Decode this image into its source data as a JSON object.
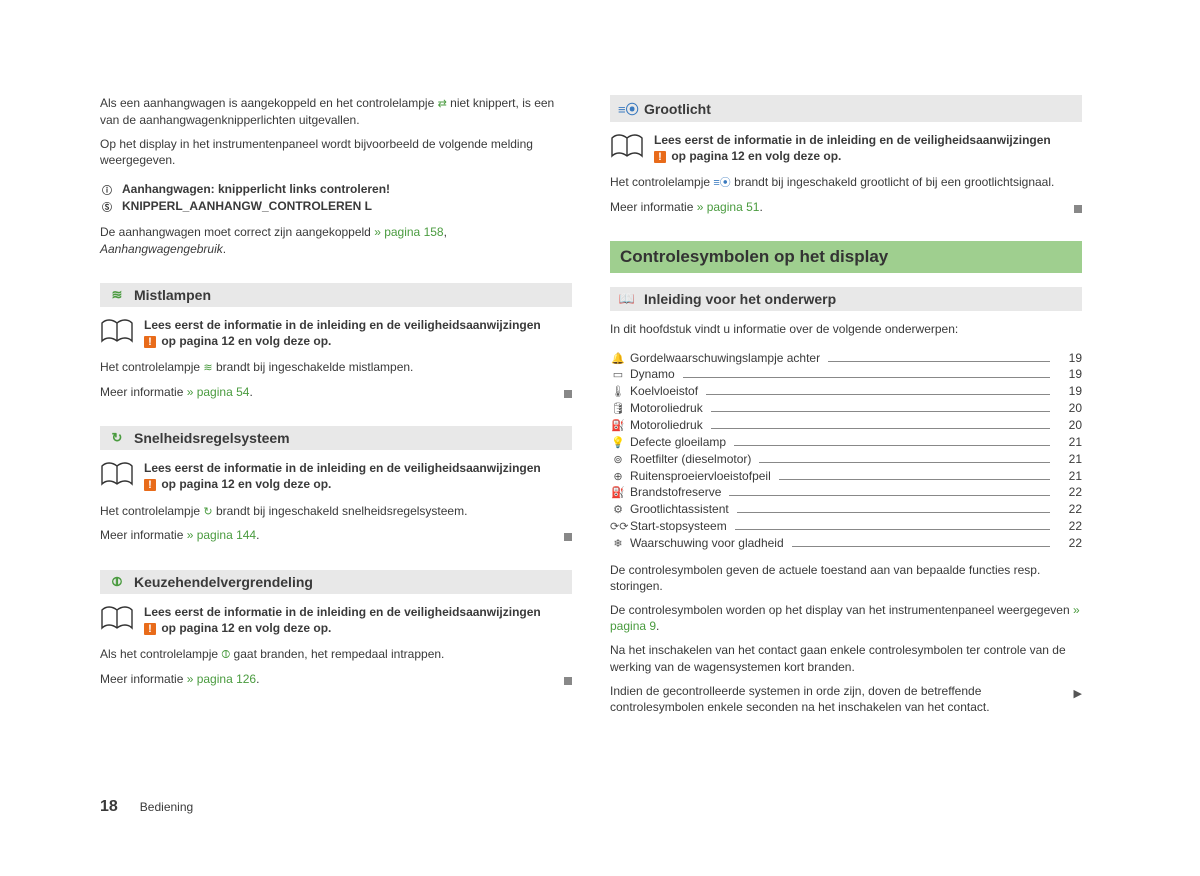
{
  "colors": {
    "green": "#4a9b3f",
    "blue": "#3a7abf",
    "orange": "#e86b1a",
    "heading_green_bg": "#9fcf8f",
    "bar_grey": "#e8e8e8"
  },
  "notice_text": {
    "line1": "Lees eerst de informatie in de inleiding en de veiligheidsaanwijzingen",
    "line2_prefix": " op pagina 12 en volg deze op.",
    "warn_glyph": "!"
  },
  "left": {
    "intro_p1_a": "Als een aanhangwagen is aangekoppeld en het controlelampje ",
    "intro_p1_b": " niet knippert, is een van de aanhangwagenknipperlichten uitgevallen.",
    "intro_p2": "Op het display in het instrumentenpaneel wordt bijvoorbeeld de volgende melding weergegeven.",
    "bullets": [
      {
        "glyph": "ⓘ",
        "text": "Aanhangwagen: knipperlicht links controleren!"
      },
      {
        "glyph": "Ⓢ",
        "text": "KNIPPERL_AANHANGW_CONTROLEREN L"
      }
    ],
    "intro_p3_a": "De aanhangwagen moet correct zijn aangekoppeld ",
    "intro_p3_ref": "» pagina 158",
    "intro_p3_b": ", ",
    "intro_p3_italic": "Aanhangwagengebruik",
    "intro_p3_c": ".",
    "sections": [
      {
        "icon": "≋",
        "title": "Mistlampen",
        "body_a": "Het controlelampje ",
        "body_b": " brandt bij ingeschakelde mistlampen.",
        "more_a": "Meer informatie ",
        "more_ref": "» pagina 54",
        "more_b": "."
      },
      {
        "icon": "↻",
        "title": "Snelheidsregelsysteem",
        "body_a": "Het controlelampje ",
        "body_b": " brandt bij ingeschakeld snelheidsregelsysteem.",
        "more_a": "Meer informatie ",
        "more_ref": "» pagina 144",
        "more_b": "."
      },
      {
        "icon": "⦷",
        "title": "Keuzehendelvergrendeling",
        "body_a": "Als het controlelampje ",
        "body_b": " gaat branden, het rempedaal intrappen.",
        "more_a": "Meer informatie ",
        "more_ref": "» pagina 126",
        "more_b": "."
      }
    ]
  },
  "right": {
    "grootlicht": {
      "icon": "≡⦿",
      "title": "Grootlicht",
      "body_a": "Het controlelampje ",
      "body_b": " brandt bij ingeschakeld grootlicht of bij een grootlichtsignaal.",
      "more_a": "Meer informatie ",
      "more_ref": "» pagina 51",
      "more_b": "."
    },
    "heading": "Controlesymbolen op het display",
    "intro_bar": {
      "icon": "📖",
      "title": "Inleiding voor het onderwerp"
    },
    "intro_line": "In dit hoofdstuk vindt u informatie over de volgende onderwerpen:",
    "toc": [
      {
        "icon": "🔔",
        "label": "Gordelwaarschuwingslampje achter",
        "page": "19"
      },
      {
        "icon": "▭",
        "label": "Dynamo",
        "page": "19"
      },
      {
        "icon": "🌡",
        "label": "Koelvloeistof",
        "page": "19"
      },
      {
        "icon": "🛢",
        "label": "Motoroliedruk",
        "page": "20"
      },
      {
        "icon": "⛽",
        "label": "Motoroliedruk",
        "page": "20"
      },
      {
        "icon": "💡",
        "label": "Defecte gloeilamp",
        "page": "21"
      },
      {
        "icon": "⊚",
        "label": "Roetfilter (dieselmotor)",
        "page": "21"
      },
      {
        "icon": "⊕",
        "label": "Ruitensproeiervloeistofpeil",
        "page": "21"
      },
      {
        "icon": "⛽",
        "label": "Brandstofreserve",
        "page": "22"
      },
      {
        "icon": "⚙",
        "label": "Grootlichtassistent",
        "page": "22"
      },
      {
        "icon": "⟳⟳",
        "label": "Start-stopsysteem",
        "page": "22"
      },
      {
        "icon": "❄",
        "label": "Waarschuwing voor gladheid",
        "page": "22"
      }
    ],
    "p1": "De controlesymbolen geven de actuele toestand aan van bepaalde functies resp. storingen.",
    "p2_a": "De controlesymbolen worden op het display van het instrumentenpaneel weergegeven ",
    "p2_ref": "» pagina 9",
    "p2_b": ".",
    "p3": "Na het inschakelen van het contact gaan enkele controlesymbolen ter controle van de werking van de wagensystemen kort branden.",
    "p4": "Indien de gecontrolleerde systemen in orde zijn, doven de betreffende controlesymbolen enkele seconden na het inschakelen van het contact."
  },
  "footer": {
    "page_num": "18",
    "title": "Bediening"
  }
}
